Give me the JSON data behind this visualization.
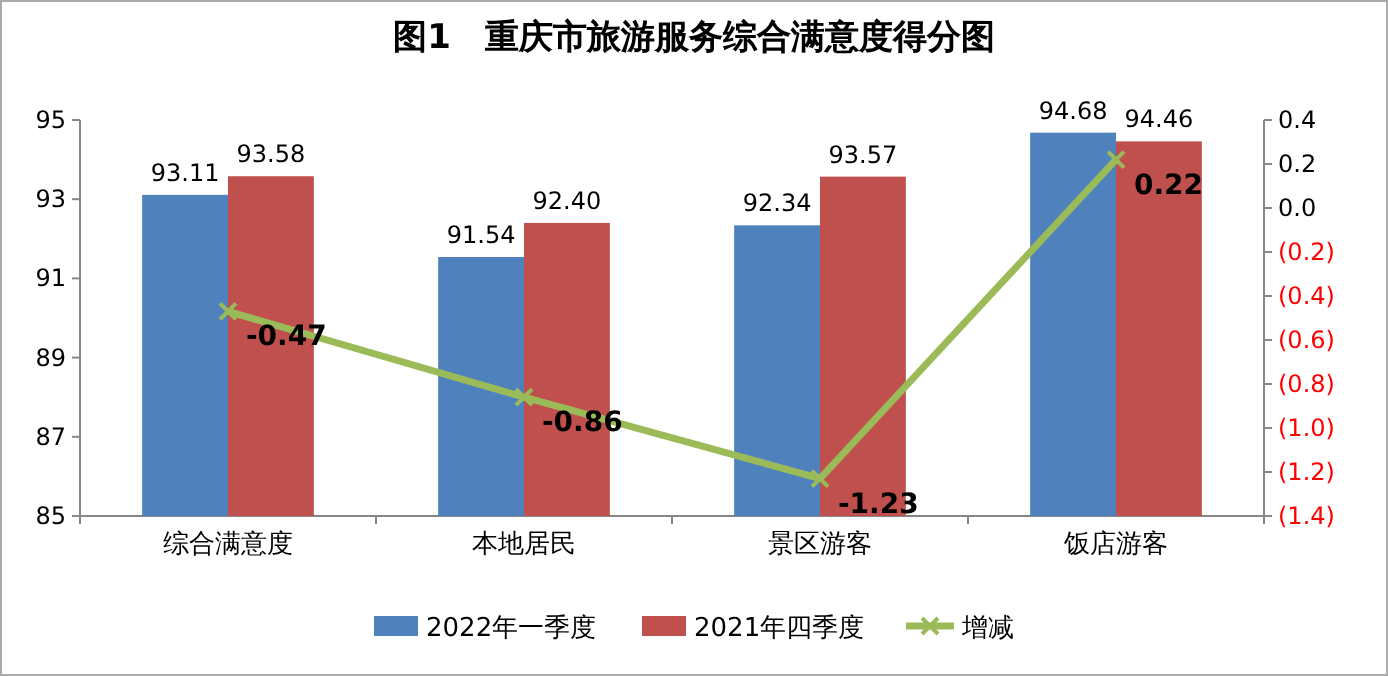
{
  "chart_data": {
    "type": "bar",
    "title": "图1　重庆市旅游服务综合满意度得分图",
    "categories": [
      "综合满意度",
      "本地居民",
      "景区游客",
      "饭店游客"
    ],
    "series": [
      {
        "name": "2022年一季度",
        "color": "#4f81bd",
        "values": [
          93.11,
          91.54,
          92.34,
          94.68
        ]
      },
      {
        "name": "2021年四季度",
        "color": "#c0504d",
        "values": [
          93.58,
          92.4,
          93.57,
          94.46
        ],
        "value_labels": [
          "93.58",
          "92.40",
          "93.57",
          "94.46"
        ]
      },
      {
        "name": "增减",
        "type": "line",
        "axis": "y2",
        "color": "#9bbb59",
        "marker": "cross",
        "values": [
          -0.47,
          -0.86,
          -1.23,
          0.22
        ]
      }
    ],
    "ylim": [
      85,
      95
    ],
    "yticks": [
      85,
      87,
      89,
      91,
      93,
      95
    ],
    "y2lim": [
      -1.4,
      0.4
    ],
    "y2ticks": [
      {
        "value": -1.4,
        "label": "(1.4)"
      },
      {
        "value": -1.2,
        "label": "(1.2)"
      },
      {
        "value": -1.0,
        "label": "(1.0)"
      },
      {
        "value": -0.8,
        "label": "(0.8)"
      },
      {
        "value": -0.6,
        "label": "(0.6)"
      },
      {
        "value": -0.4,
        "label": "(0.4)"
      },
      {
        "value": -0.2,
        "label": "(0.2)"
      },
      {
        "value": 0,
        "label": "0.0"
      },
      {
        "value": 0.2,
        "label": "0.2"
      },
      {
        "value": 0.4,
        "label": "0.4"
      }
    ],
    "data_labels": true,
    "legend": "bottom",
    "grid": false
  }
}
